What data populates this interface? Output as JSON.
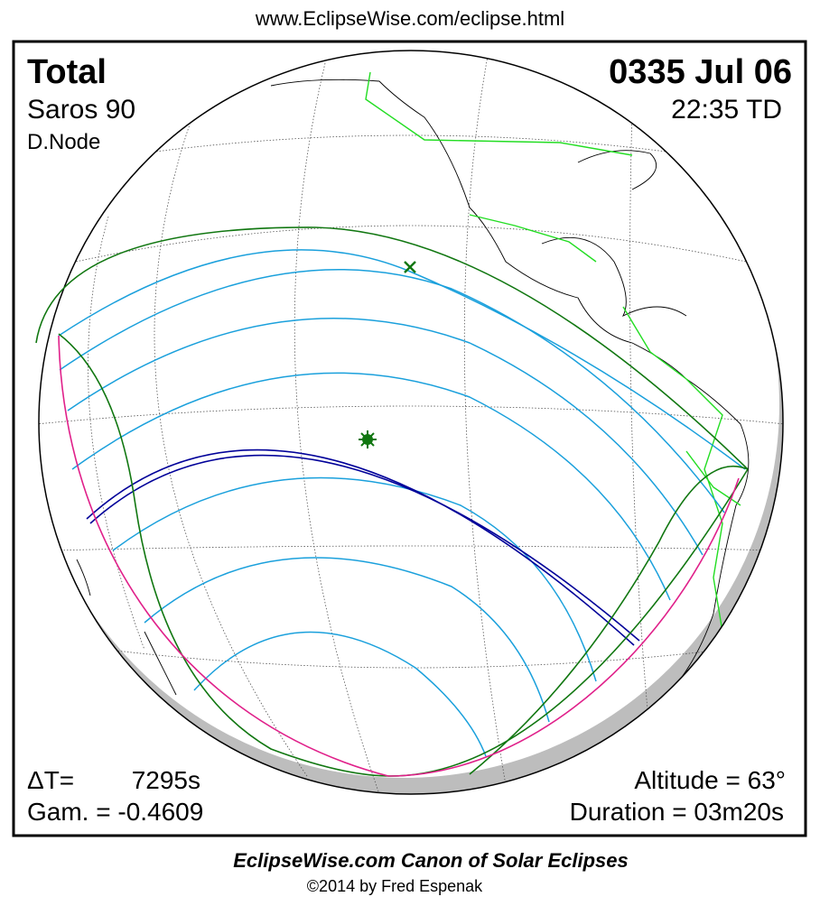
{
  "url": "www.EclipseWise.com/eclipse.html",
  "header": {
    "type": "Total",
    "saros": "Saros  90",
    "node": "D.Node",
    "date": "0335 Jul 06",
    "time": "22:35 TD"
  },
  "footer": {
    "delta_t_label": "ΔT=",
    "delta_t_value": "7295s",
    "gamma": "Gam. = -0.4609",
    "altitude": "Altitude = 63°",
    "duration": "Duration = 03m20s"
  },
  "credit": {
    "title": "EclipseWise.com Canon of Solar Eclipses",
    "copyright": "©2014 by Fred Espenak"
  }
}
